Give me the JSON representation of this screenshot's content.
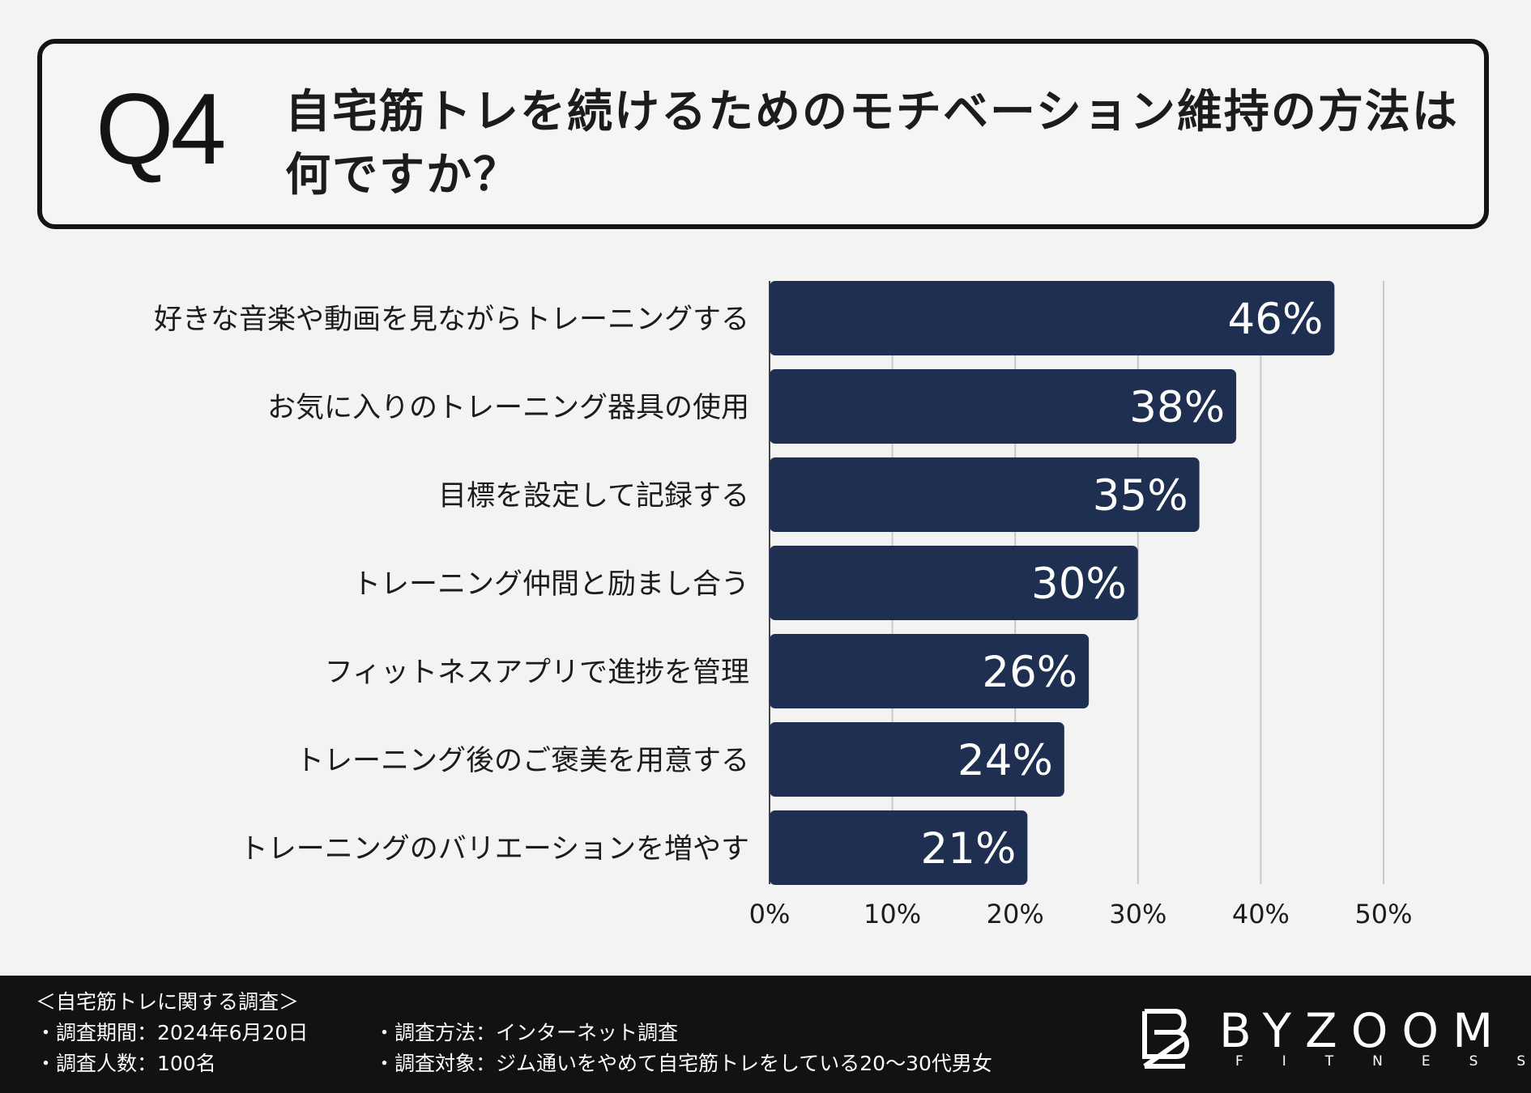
{
  "question": {
    "number": "Q4",
    "text": "自宅筋トレを続けるためのモチベーション維持の方法は何ですか？"
  },
  "colors": {
    "bar": "#1e2f52",
    "grid": "#c8c8c8",
    "axis": "#444444",
    "footer_bg": "#121212"
  },
  "chart_data": {
    "type": "bar",
    "orientation": "horizontal",
    "categories": [
      "好きな音楽や動画を見ながらトレーニングする",
      "お気に入りのトレーニング器具の使用",
      "目標を設定して記録する",
      "トレーニング仲間と励まし合う",
      "フィットネスアプリで進捗を管理",
      "トレーニング後のご褒美を用意する",
      "トレーニングのバリエーションを増やす"
    ],
    "values": [
      46,
      38,
      35,
      30,
      26,
      24,
      21
    ],
    "value_labels": [
      "46%",
      "38%",
      "35%",
      "30%",
      "26%",
      "24%",
      "21%"
    ],
    "xlim": [
      0,
      50
    ],
    "xticks": [
      0,
      10,
      20,
      30,
      40,
      50
    ],
    "xtick_labels": [
      "0%",
      "10%",
      "20%",
      "30%",
      "40%",
      "50%"
    ],
    "title": "自宅筋トレを続けるためのモチベーション維持の方法は何ですか？",
    "xlabel": "",
    "ylabel": "",
    "grid": true
  },
  "footer": {
    "survey_title": "＜自宅筋トレに関する調査＞",
    "period": "・調査期間：2024年6月20日",
    "respondents": "・調査人数：100名",
    "method": "・調査方法：インターネット調査",
    "target": "・調査対象：ジム通いをやめて自宅筋トレをしている20～30代男女"
  },
  "logo": {
    "word": "BYZOOM",
    "sub": "FITNESS",
    "icon": "byzoom-logo-icon"
  }
}
